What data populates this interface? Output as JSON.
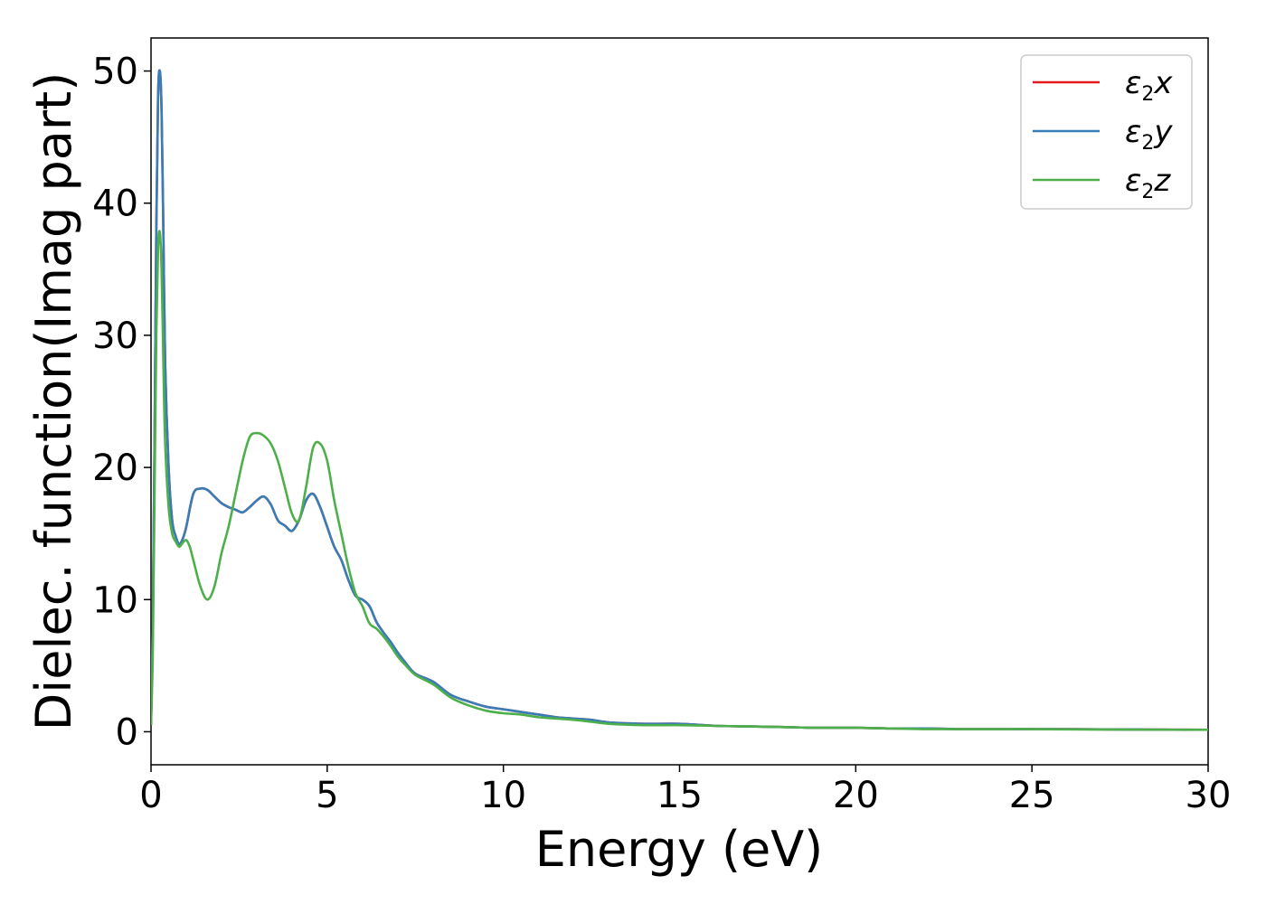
{
  "chart_data": {
    "type": "line",
    "title": "",
    "xlabel": "Energy (eV)",
    "ylabel": "Dielec. function(Imag part)",
    "xlim": [
      0,
      30
    ],
    "ylim": [
      -2.5,
      52.5
    ],
    "xticks": [
      0,
      5,
      10,
      15,
      20,
      25,
      30
    ],
    "yticks": [
      0,
      10,
      20,
      30,
      40,
      50
    ],
    "grid": false,
    "legend_position": "top-right",
    "series": [
      {
        "name": "ε2x",
        "legend_base": "ε",
        "legend_sub": "2",
        "legend_tail": "x",
        "color": "#e41a1c",
        "x": [
          0,
          0.05,
          0.1,
          0.15,
          0.2,
          0.25,
          0.3,
          0.35,
          0.4,
          0.5,
          0.6,
          0.7,
          0.8,
          0.9,
          1.0,
          1.2,
          1.4,
          1.6,
          1.8,
          2.0,
          2.2,
          2.4,
          2.6,
          2.8,
          3.0,
          3.2,
          3.4,
          3.6,
          3.8,
          4.0,
          4.2,
          4.4,
          4.6,
          4.8,
          5.0,
          5.2,
          5.4,
          5.6,
          5.8,
          6.0,
          6.2,
          6.4,
          6.6,
          6.8,
          7.0,
          7.2,
          7.5,
          8.0,
          8.5,
          9.0,
          9.5,
          10.0,
          10.5,
          11.0,
          11.5,
          12.0,
          12.5,
          13.0,
          14.0,
          15.0,
          16.0,
          17.0,
          18.0,
          19.0,
          20.0,
          21.0,
          22.0,
          23.0,
          24.0,
          25.0,
          26.0,
          27.0,
          28.0,
          29.0,
          30.0
        ],
        "values": [
          0.5,
          8,
          22,
          38,
          48,
          50,
          47,
          38,
          28,
          20,
          16,
          14.8,
          14.2,
          14.6,
          15.5,
          18.0,
          18.4,
          18.3,
          17.8,
          17.3,
          17.0,
          16.8,
          16.6,
          17.0,
          17.5,
          17.8,
          17.2,
          16.0,
          15.6,
          15.2,
          16.0,
          17.5,
          18.0,
          17.0,
          15.5,
          14.0,
          13.0,
          11.5,
          10.3,
          10.0,
          9.5,
          8.3,
          7.5,
          6.8,
          6.0,
          5.3,
          4.4,
          3.8,
          2.8,
          2.3,
          1.9,
          1.7,
          1.5,
          1.3,
          1.1,
          1.0,
          0.9,
          0.7,
          0.6,
          0.6,
          0.45,
          0.4,
          0.35,
          0.3,
          0.3,
          0.25,
          0.25,
          0.2,
          0.2,
          0.2,
          0.2,
          0.18,
          0.17,
          0.16,
          0.15
        ]
      },
      {
        "name": "ε2y",
        "legend_base": "ε",
        "legend_sub": "2",
        "legend_tail": "y",
        "color": "#377eb8",
        "x": [
          0,
          0.05,
          0.1,
          0.15,
          0.2,
          0.25,
          0.3,
          0.35,
          0.4,
          0.5,
          0.6,
          0.7,
          0.8,
          0.9,
          1.0,
          1.2,
          1.4,
          1.6,
          1.8,
          2.0,
          2.2,
          2.4,
          2.6,
          2.8,
          3.0,
          3.2,
          3.4,
          3.6,
          3.8,
          4.0,
          4.2,
          4.4,
          4.6,
          4.8,
          5.0,
          5.2,
          5.4,
          5.6,
          5.8,
          6.0,
          6.2,
          6.4,
          6.6,
          6.8,
          7.0,
          7.2,
          7.5,
          8.0,
          8.5,
          9.0,
          9.5,
          10.0,
          10.5,
          11.0,
          11.5,
          12.0,
          12.5,
          13.0,
          14.0,
          15.0,
          16.0,
          17.0,
          18.0,
          19.0,
          20.0,
          21.0,
          22.0,
          23.0,
          24.0,
          25.0,
          26.0,
          27.0,
          28.0,
          29.0,
          30.0
        ],
        "values": [
          0.5,
          8,
          22,
          38,
          48,
          50,
          47,
          38,
          28,
          20,
          16,
          14.8,
          14.2,
          14.6,
          15.5,
          18.0,
          18.4,
          18.3,
          17.8,
          17.3,
          17.0,
          16.8,
          16.6,
          17.0,
          17.5,
          17.8,
          17.2,
          16.0,
          15.6,
          15.2,
          16.0,
          17.5,
          18.0,
          17.0,
          15.5,
          14.0,
          13.0,
          11.5,
          10.3,
          10.0,
          9.5,
          8.3,
          7.5,
          6.8,
          6.0,
          5.3,
          4.4,
          3.8,
          2.8,
          2.3,
          1.9,
          1.7,
          1.5,
          1.3,
          1.1,
          1.0,
          0.9,
          0.7,
          0.6,
          0.6,
          0.45,
          0.4,
          0.35,
          0.3,
          0.3,
          0.25,
          0.25,
          0.2,
          0.2,
          0.2,
          0.2,
          0.18,
          0.17,
          0.16,
          0.15
        ]
      },
      {
        "name": "ε2z",
        "legend_base": "ε",
        "legend_sub": "2",
        "legend_tail": "z",
        "color": "#4daf4a",
        "x": [
          0,
          0.05,
          0.1,
          0.15,
          0.2,
          0.25,
          0.3,
          0.35,
          0.4,
          0.5,
          0.6,
          0.7,
          0.8,
          0.9,
          1.0,
          1.1,
          1.2,
          1.4,
          1.6,
          1.8,
          2.0,
          2.2,
          2.4,
          2.6,
          2.8,
          3.0,
          3.2,
          3.4,
          3.6,
          3.8,
          4.0,
          4.2,
          4.4,
          4.6,
          4.8,
          5.0,
          5.2,
          5.4,
          5.6,
          5.8,
          6.0,
          6.2,
          6.4,
          6.6,
          6.8,
          7.0,
          7.2,
          7.5,
          8.0,
          8.5,
          9.0,
          9.5,
          10.0,
          10.5,
          11.0,
          11.5,
          12.0,
          12.5,
          13.0,
          14.0,
          15.0,
          16.0,
          17.0,
          18.0,
          19.0,
          20.0,
          21.0,
          22.0,
          23.0,
          24.0,
          25.0,
          26.0,
          27.0,
          28.0,
          29.0,
          30.0
        ],
        "values": [
          0.5,
          6,
          18,
          30,
          36.5,
          37.8,
          35,
          28,
          22,
          17,
          15,
          14.4,
          14.0,
          14.3,
          14.5,
          14.0,
          13.0,
          11.0,
          10.0,
          11.0,
          13.5,
          15.5,
          18.0,
          20.5,
          22.3,
          22.6,
          22.4,
          21.8,
          20.5,
          18.5,
          16.5,
          16.0,
          18.5,
          21.5,
          21.8,
          20.5,
          17.5,
          15.0,
          12.5,
          10.5,
          9.5,
          8.2,
          7.8,
          7.2,
          6.5,
          5.7,
          5.1,
          4.3,
          3.6,
          2.6,
          2.0,
          1.6,
          1.4,
          1.3,
          1.1,
          1.0,
          0.9,
          0.75,
          0.6,
          0.5,
          0.5,
          0.45,
          0.4,
          0.35,
          0.3,
          0.3,
          0.25,
          0.2,
          0.2,
          0.2,
          0.2,
          0.18,
          0.17,
          0.16,
          0.15,
          0.15
        ]
      }
    ]
  }
}
